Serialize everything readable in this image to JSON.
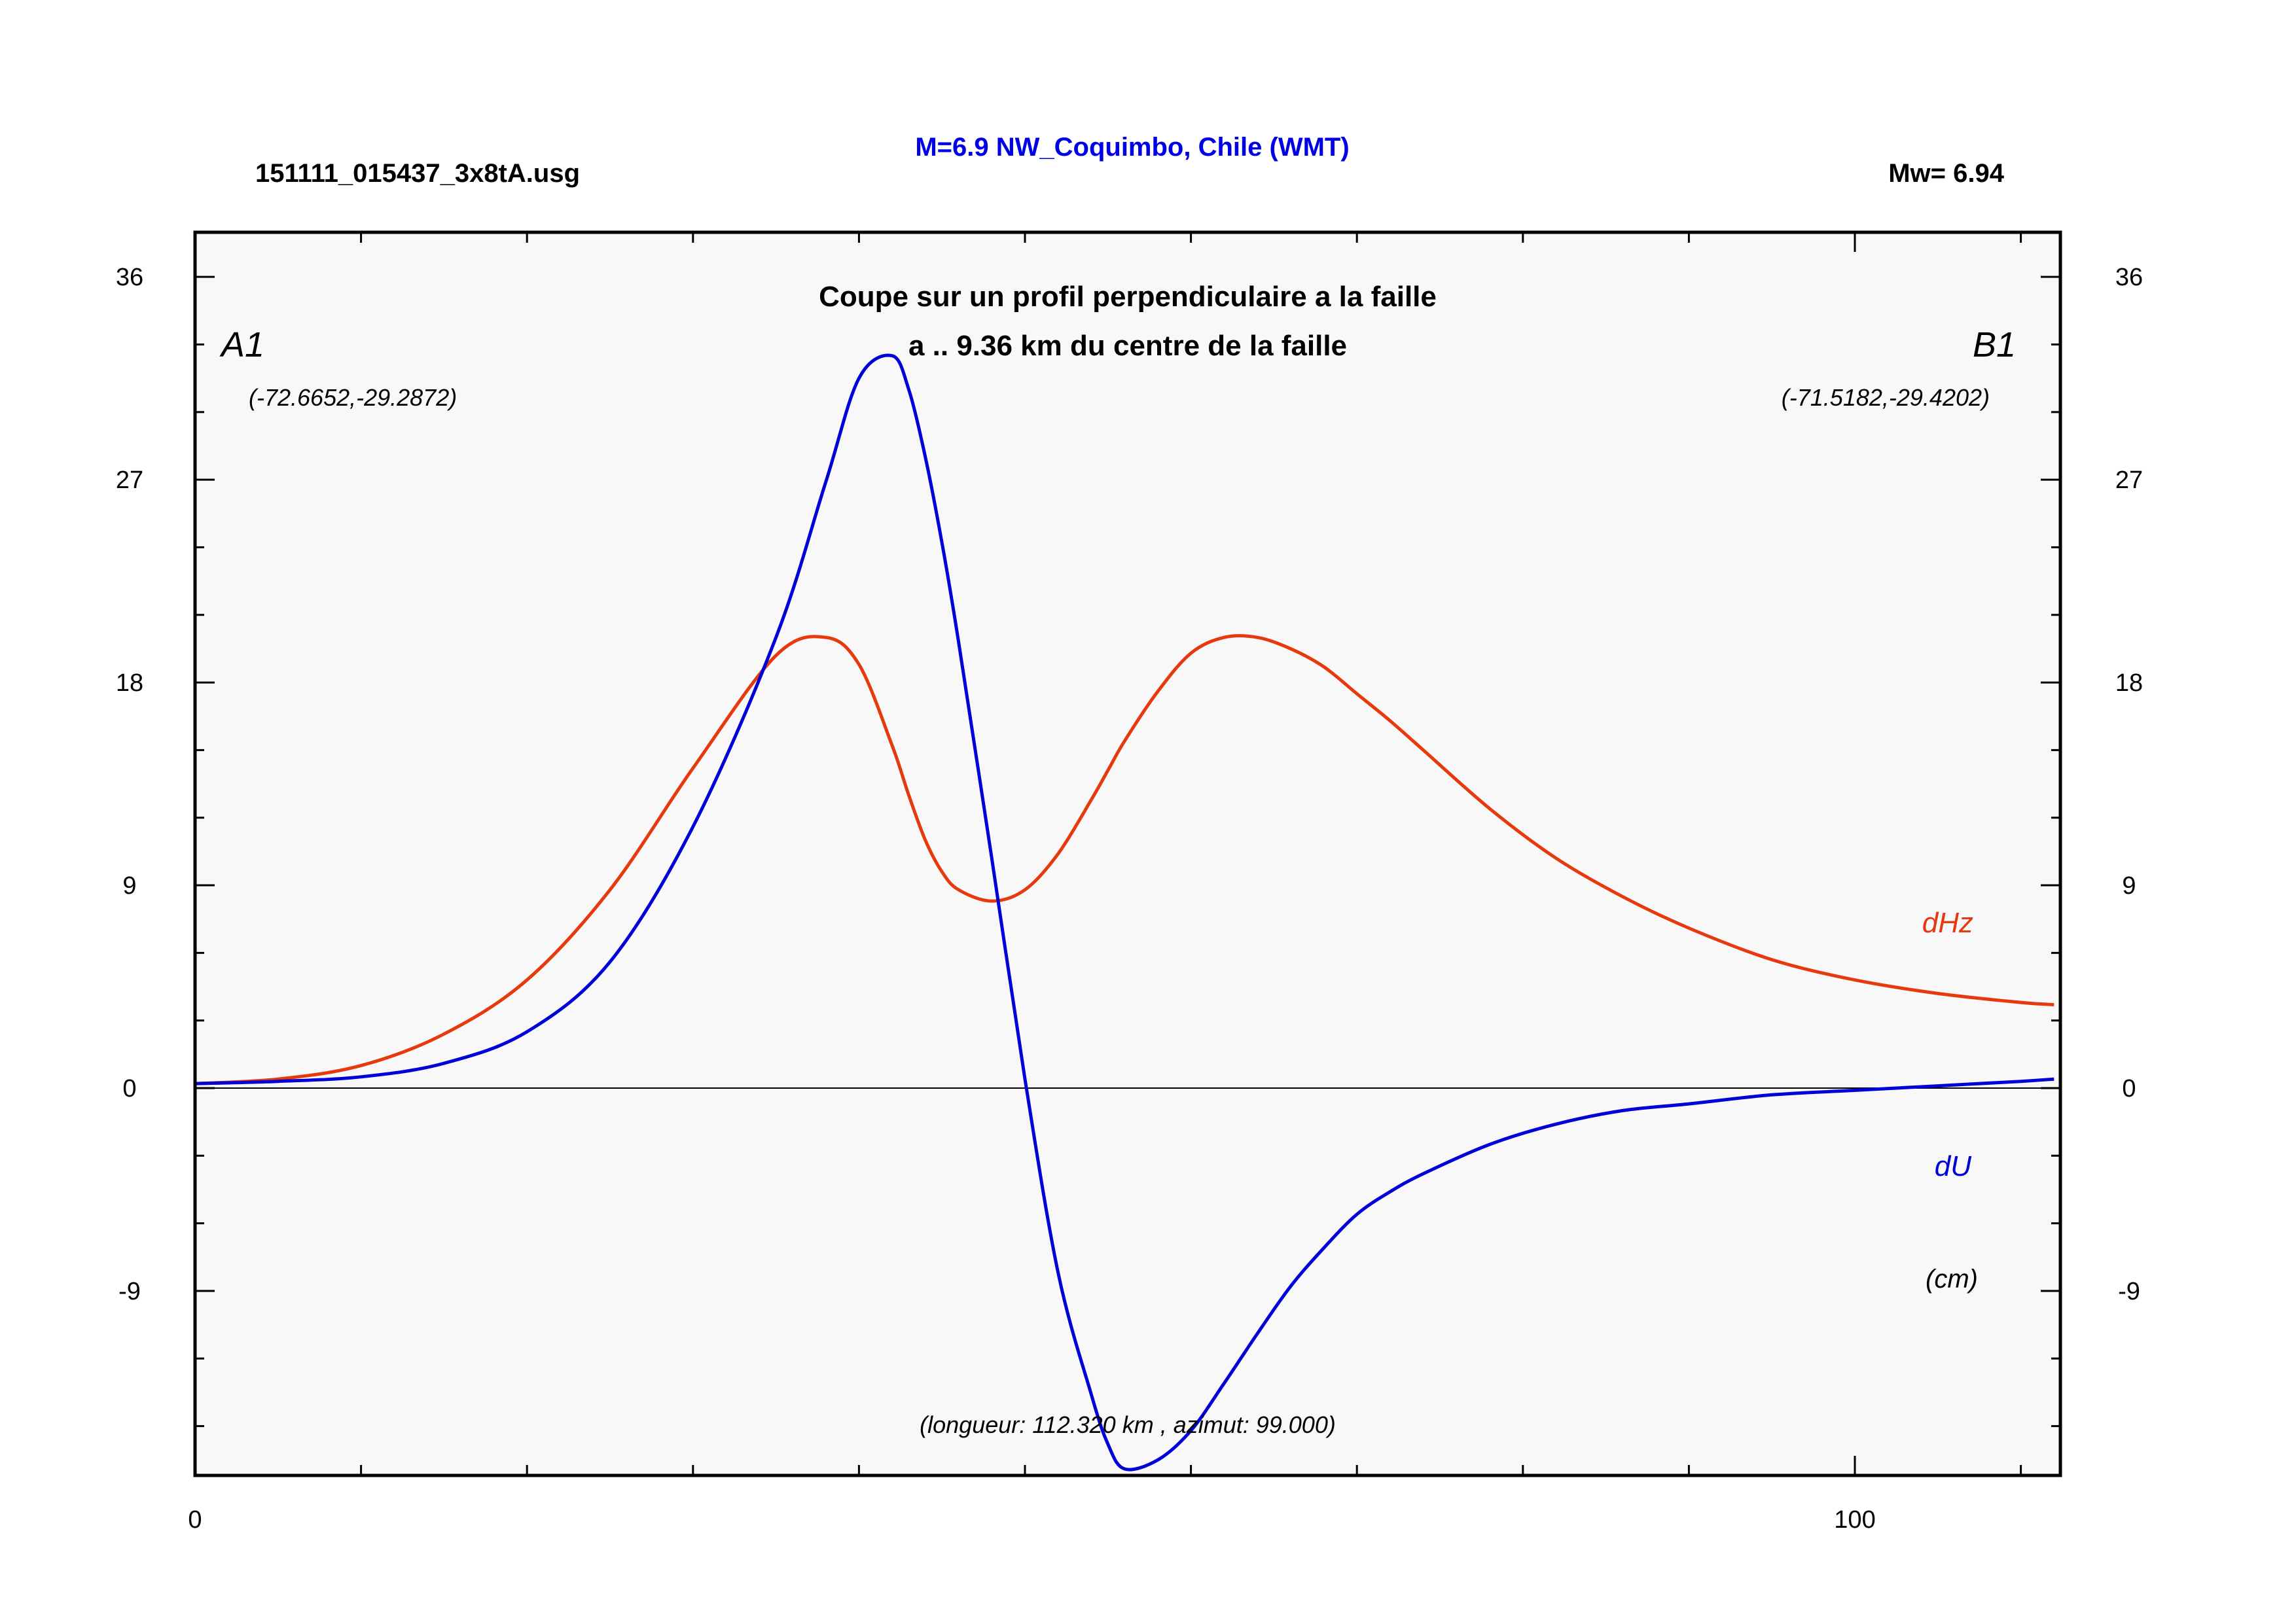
{
  "header": {
    "filename": "151111_015437_3x8tA.usg",
    "title": "M=6.9 NW_Coquimbo, Chile (WMT)",
    "magnitude": "Mw= 6.94"
  },
  "colors": {
    "background_plot": "#f8f8f8",
    "dHz": "#e63a0e",
    "dU": "#0000d8",
    "title": "#0000e6"
  },
  "chart_data": {
    "type": "line",
    "title": "Coupe sur un profil perpendiculaire a la faille",
    "subtitle": "a .. 9.36 km du centre de la faille",
    "point_a": {
      "label": "A1",
      "coords": "(-72.6652,-29.2872)"
    },
    "point_b": {
      "label": "B1",
      "coords": "(-71.5182,-29.4202)"
    },
    "units": "(cm)",
    "footnote": "(longueur: 112.320 km , azimut: 99.000)",
    "xlim": [
      0,
      112.32
    ],
    "ylim": [
      -17,
      38
    ],
    "x_ticks": [
      "0",
      "100"
    ],
    "y_ticks": [
      "36",
      "27",
      "18",
      "9",
      "0",
      "-9"
    ],
    "grid": false,
    "series": [
      {
        "name": "dHz",
        "x": [
          0,
          5,
          10,
          15,
          20,
          25,
          30,
          35,
          38,
          40,
          42,
          43,
          44,
          45,
          46,
          48,
          50,
          52,
          54,
          55,
          56,
          58,
          60,
          62,
          64,
          66,
          68,
          70,
          72,
          74,
          78,
          82,
          86,
          90,
          95,
          100,
          105,
          110,
          112
        ],
        "y": [
          0.2,
          0.4,
          1.0,
          2.4,
          4.8,
          8.8,
          14.2,
          19.2,
          20.0,
          18.8,
          15.2,
          13.0,
          11.0,
          9.6,
          8.8,
          8.3,
          8.8,
          10.4,
          12.8,
          14.1,
          15.4,
          17.6,
          19.3,
          20.0,
          20.0,
          19.5,
          18.7,
          17.5,
          16.3,
          15.0,
          12.4,
          10.2,
          8.5,
          7.1,
          5.7,
          4.8,
          4.2,
          3.8,
          3.7
        ]
      },
      {
        "name": "dU",
        "x": [
          0,
          5,
          10,
          15,
          20,
          25,
          30,
          35,
          38,
          40,
          42,
          43,
          44,
          45,
          46,
          48,
          50,
          52,
          54,
          55,
          56,
          58,
          60,
          62,
          64,
          66,
          68,
          70,
          72,
          74,
          78,
          82,
          86,
          90,
          95,
          100,
          105,
          110,
          112
        ],
        "y": [
          0.2,
          0.3,
          0.5,
          1.1,
          2.5,
          5.6,
          11.6,
          20.0,
          26.9,
          31.5,
          32.5,
          31.0,
          28.0,
          24.2,
          19.8,
          10.2,
          0.4,
          -8.2,
          -13.6,
          -15.8,
          -16.9,
          -16.5,
          -15.2,
          -13.1,
          -10.9,
          -8.8,
          -7.1,
          -5.6,
          -4.6,
          -3.8,
          -2.5,
          -1.6,
          -1.0,
          -0.7,
          -0.3,
          -0.1,
          0.1,
          0.3,
          0.4
        ]
      }
    ]
  }
}
